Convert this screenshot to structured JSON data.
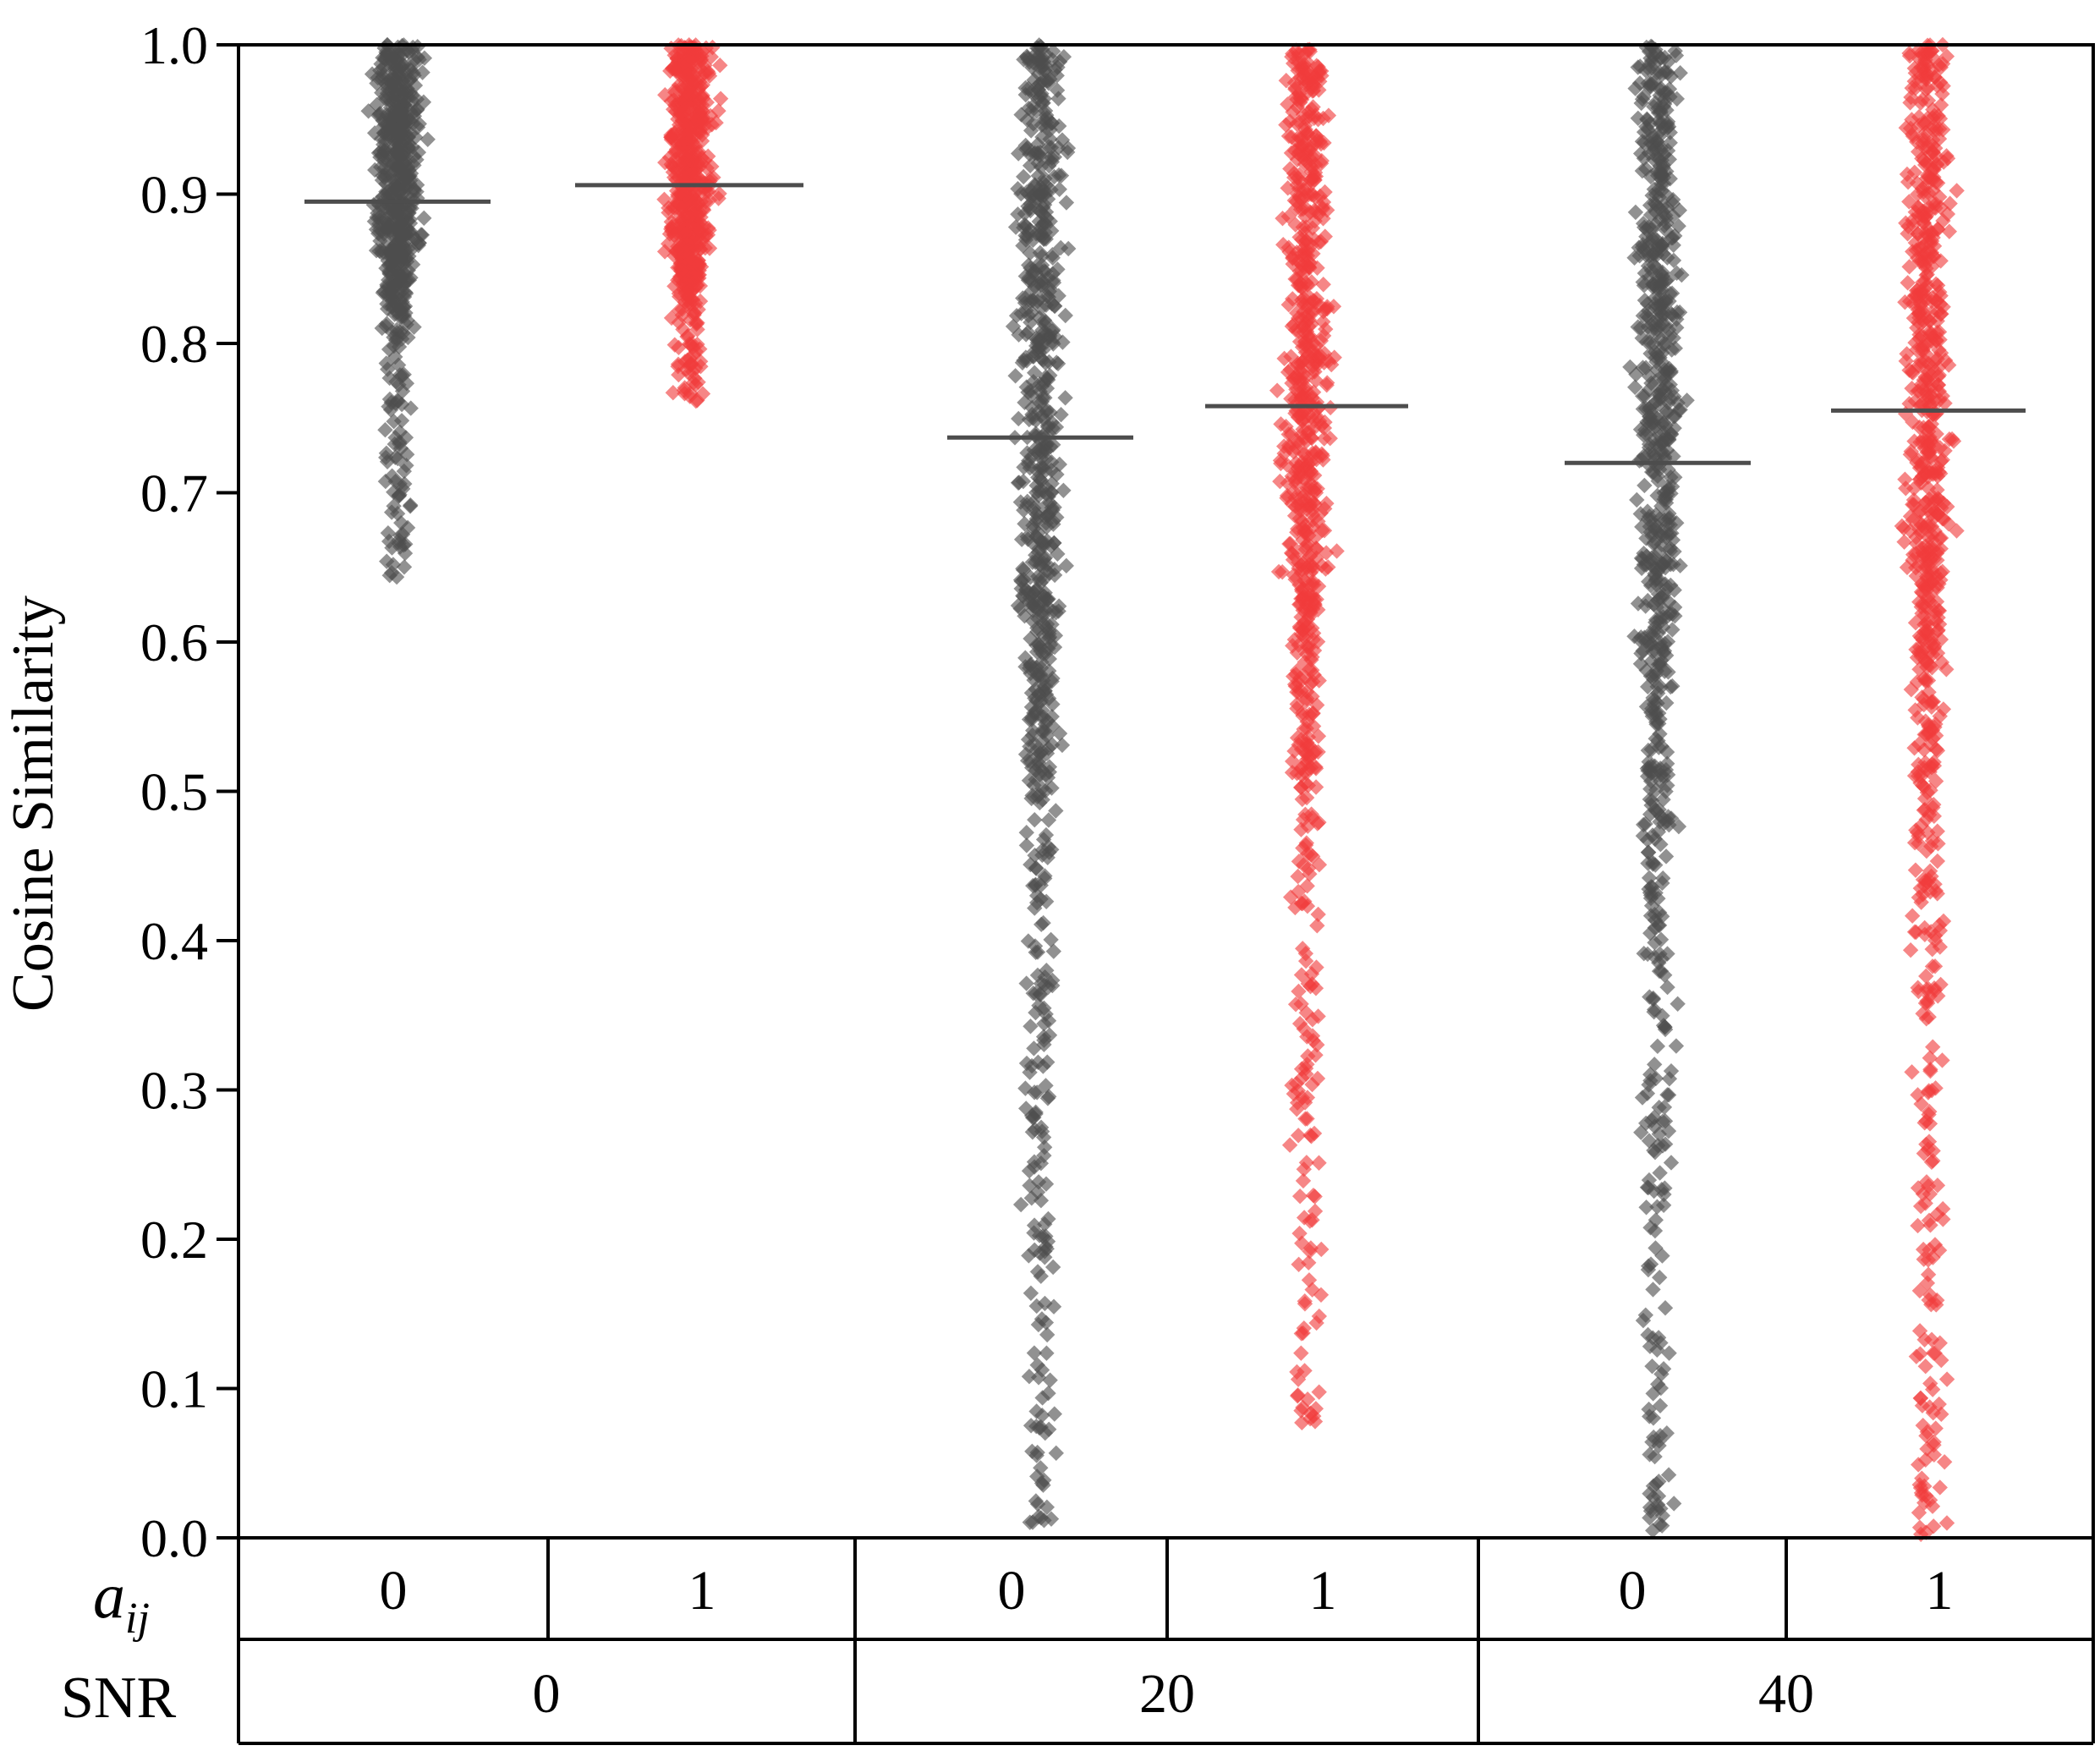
{
  "chart_data": {
    "type": "scatter",
    "subtype": "strip-plot-with-mean-lines",
    "ylabel": "Cosine Similarity",
    "ylim": [
      0.0,
      1.0
    ],
    "yticks": [
      "0.0",
      "0.1",
      "0.2",
      "0.3",
      "0.4",
      "0.5",
      "0.6",
      "0.7",
      "0.8",
      "0.9",
      "1.0"
    ],
    "grid": false,
    "legend": "none",
    "colors": {
      "a0": "#4d4d4d",
      "a1": "#f03c3c",
      "mean_line": "#4d4d4d",
      "axis": "#000000"
    },
    "table": {
      "row1_label_base": "a",
      "row1_label_sub": "ij",
      "row2_label": "SNR",
      "a_values": [
        "0",
        "1",
        "0",
        "1",
        "0",
        "1"
      ],
      "snr_values": [
        "0",
        "20",
        "40"
      ]
    },
    "groups": [
      {
        "snr": "0",
        "a": "0",
        "mean": 0.895,
        "min": 0.64,
        "max": 1.0,
        "q25": 0.86,
        "q75": 0.94
      },
      {
        "snr": "0",
        "a": "1",
        "mean": 0.906,
        "min": 0.76,
        "max": 1.0,
        "q25": 0.86,
        "q75": 0.96
      },
      {
        "snr": "20",
        "a": "0",
        "mean": 0.737,
        "min": 0.01,
        "max": 1.0,
        "q25": 0.62,
        "q75": 0.92
      },
      {
        "snr": "20",
        "a": "1",
        "mean": 0.758,
        "min": 0.07,
        "max": 1.0,
        "q25": 0.64,
        "q75": 0.94
      },
      {
        "snr": "40",
        "a": "0",
        "mean": 0.72,
        "min": 0.0,
        "max": 1.0,
        "q25": 0.6,
        "q75": 0.93
      },
      {
        "snr": "40",
        "a": "1",
        "mean": 0.755,
        "min": 0.0,
        "max": 1.0,
        "q25": 0.64,
        "q75": 0.96
      }
    ]
  }
}
